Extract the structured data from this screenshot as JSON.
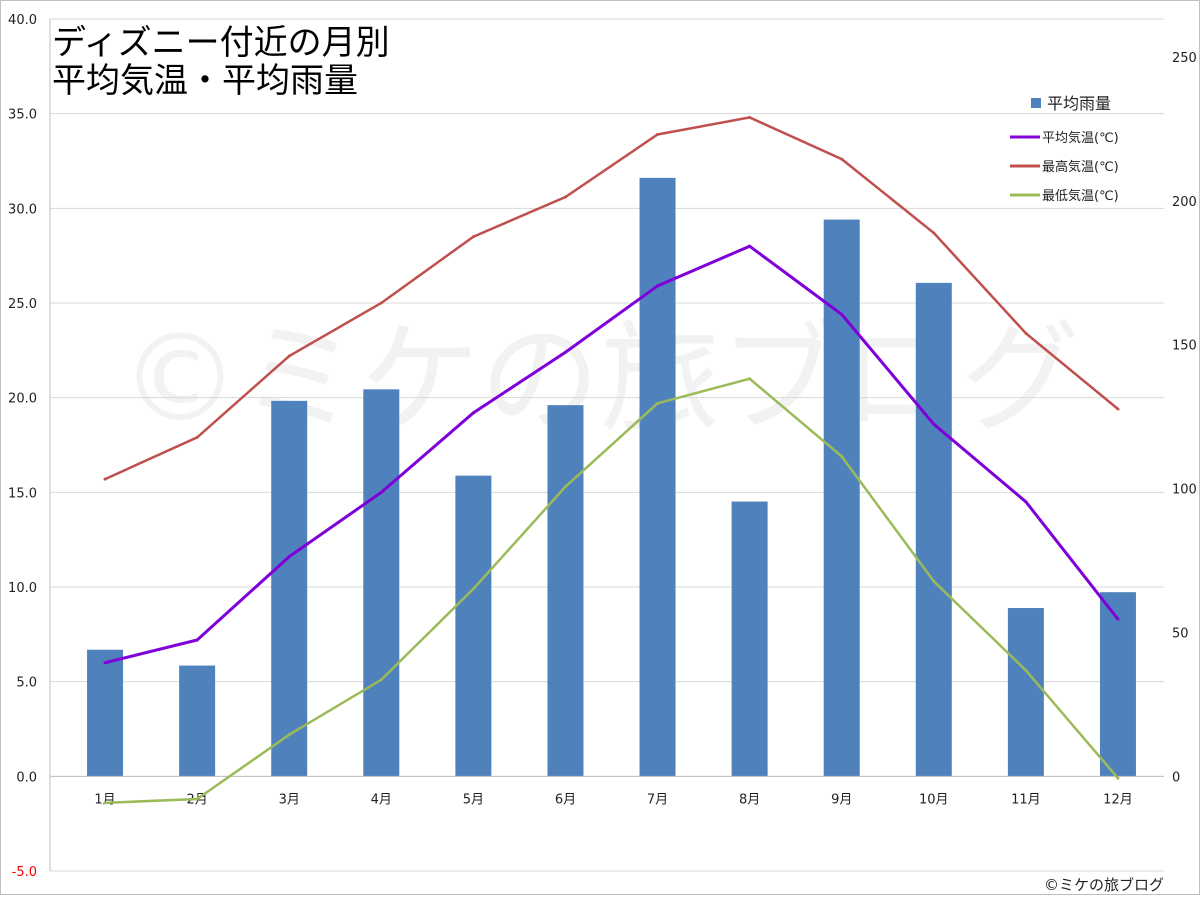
{
  "chart_data": {
    "type": "bar+line",
    "title_lines": [
      "ディズニー付近の月別",
      "平均気温・平均雨量"
    ],
    "categories": [
      "1月",
      "2月",
      "3月",
      "4月",
      "5月",
      "6月",
      "7月",
      "8月",
      "9月",
      "10月",
      "11月",
      "12月"
    ],
    "left_axis": {
      "min": -5,
      "max": 40,
      "step": 5,
      "ticks": [
        "-5.0",
        "0.0",
        "5.0",
        "10.0",
        "15.0",
        "20.0",
        "25.0",
        "30.0",
        "35.0",
        "40.0"
      ],
      "negative_color": "#ff0000"
    },
    "right_axis": {
      "min": 0,
      "max": 250,
      "step": 50,
      "ticks": [
        "0",
        "50",
        "100",
        "150",
        "200",
        "250"
      ]
    },
    "grid": true,
    "legend_position": "top-right",
    "bars": {
      "name": "平均雨量",
      "color": "#4f81bd",
      "axis": "right",
      "values": [
        44,
        38.5,
        130.5,
        134.5,
        104.5,
        129,
        208,
        95.5,
        193.5,
        171.5,
        58.5,
        64
      ]
    },
    "series": [
      {
        "name": "平均気温(℃)",
        "color": "#7f00d9",
        "axis": "left",
        "values": [
          6.0,
          7.2,
          11.6,
          15.0,
          19.2,
          22.4,
          25.9,
          28.0,
          24.4,
          18.6,
          14.5,
          8.3
        ]
      },
      {
        "name": "最高気温(℃)",
        "color": "#c0504d",
        "axis": "left",
        "values": [
          15.7,
          17.9,
          22.2,
          25.0,
          28.5,
          30.6,
          33.9,
          34.8,
          32.6,
          28.7,
          23.4,
          19.4
        ]
      },
      {
        "name": "最低気温(℃)",
        "color": "#9bbb59",
        "axis": "left",
        "values": [
          -1.4,
          -1.2,
          2.2,
          5.1,
          9.9,
          15.3,
          19.7,
          21.0,
          16.9,
          10.3,
          5.6,
          -0.1
        ]
      }
    ],
    "watermark": "©ミケの旅ブログ",
    "credit": "©ミケの旅ブログ"
  }
}
